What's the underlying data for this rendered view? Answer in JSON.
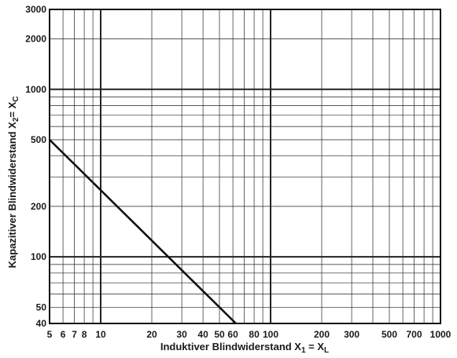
{
  "chart_data": {
    "type": "line",
    "xscale": "log",
    "yscale": "log",
    "xlim": [
      5,
      1000
    ],
    "ylim": [
      40,
      3000
    ],
    "grid": true,
    "xlabel": {
      "prefix": "Induktiver Blindwiderstand X",
      "sub": "1",
      "mid": " =  X",
      "sub2": "L"
    },
    "ylabel": {
      "prefix": "Kapazitiver Blindwiderstand X",
      "sub": "2",
      "mid": "= X",
      "sub2": "C"
    },
    "x_ticks": [
      {
        "value": 5,
        "label": "5"
      },
      {
        "value": 6,
        "label": "6"
      },
      {
        "value": 7,
        "label": "7"
      },
      {
        "value": 8,
        "label": "8"
      },
      {
        "value": 10,
        "label": "10"
      },
      {
        "value": 20,
        "label": "20"
      },
      {
        "value": 30,
        "label": "30"
      },
      {
        "value": 40,
        "label": "40"
      },
      {
        "value": 50,
        "label": "50"
      },
      {
        "value": 60,
        "label": "60"
      },
      {
        "value": 80,
        "label": "80"
      },
      {
        "value": 100,
        "label": "100"
      },
      {
        "value": 200,
        "label": "200"
      },
      {
        "value": 300,
        "label": "300"
      },
      {
        "value": 500,
        "label": "500"
      },
      {
        "value": 700,
        "label": "700"
      },
      {
        "value": 1000,
        "label": "1000"
      }
    ],
    "y_ticks": [
      {
        "value": 40,
        "label": "40"
      },
      {
        "value": 50,
        "label": "50"
      },
      {
        "value": 100,
        "label": "100"
      },
      {
        "value": 200,
        "label": "200"
      },
      {
        "value": 500,
        "label": "500"
      },
      {
        "value": 1000,
        "label": "1000"
      },
      {
        "value": 2000,
        "label": "2000"
      },
      {
        "value": 3000,
        "label": "3000"
      }
    ],
    "x_grid": [
      5,
      6,
      7,
      8,
      9,
      10,
      20,
      30,
      40,
      50,
      60,
      70,
      80,
      90,
      100,
      200,
      300,
      400,
      500,
      600,
      700,
      800,
      900,
      1000
    ],
    "y_grid": [
      40,
      50,
      60,
      70,
      80,
      90,
      100,
      200,
      300,
      400,
      500,
      600,
      700,
      800,
      900,
      1000,
      2000,
      3000
    ],
    "major_grid": [
      10,
      100,
      1000
    ],
    "series": [
      {
        "color": "#111111",
        "points": [
          {
            "x": 5,
            "y": 500
          },
          {
            "x": 62.5,
            "y": 40
          }
        ]
      }
    ]
  }
}
